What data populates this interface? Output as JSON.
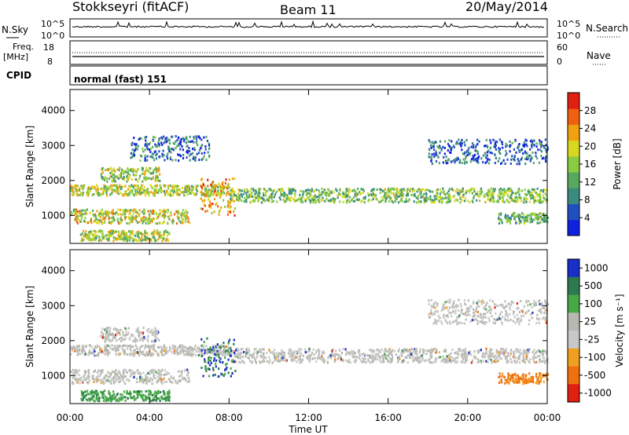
{
  "header": {
    "station": "Stokkseyri (fitACF)",
    "beam": "Beam 11",
    "date": "20/May/2014"
  },
  "panels": {
    "nsky_label": "N.Sky",
    "nsky_ticks": [
      "10^5",
      "10^0"
    ],
    "nsearch_label": "N.Search",
    "nsearch_ticks": [
      "10^5",
      "10^0"
    ],
    "freq_label": "Freq.",
    "freq_unit": "[MHz]",
    "freq_ticks": [
      "18",
      "8"
    ],
    "nave_label": "Nave",
    "nave_ticks": [
      "60",
      "0"
    ],
    "cpid_label": "CPID",
    "cpid_text": "normal (fast) 151"
  },
  "chart_data": [
    {
      "type": "heatmap",
      "name": "power",
      "ylabel": "Slant Range [km]",
      "yticks": [
        1000,
        2000,
        3000,
        4000
      ],
      "ylim": [
        200,
        4600
      ],
      "xlim": [
        "00:00",
        "24:00"
      ],
      "colorbar": {
        "label": "Power [dB]",
        "ticks": [
          "4",
          "8",
          "12",
          "16",
          "20",
          "24",
          "28"
        ],
        "colors": [
          "#1020e0",
          "#2050c0",
          "#3a8a80",
          "#58a860",
          "#8acc40",
          "#d8d820",
          "#f0a010",
          "#f06010",
          "#e02010"
        ]
      },
      "bands": [
        {
          "t0": 0.0,
          "t1": 8.0,
          "r0": 1600,
          "r1": 1900,
          "level": 0.55
        },
        {
          "t0": 8.0,
          "t1": 24.0,
          "r0": 1400,
          "r1": 1800,
          "level": 0.45
        },
        {
          "t0": 0.0,
          "t1": 6.0,
          "r0": 800,
          "r1": 1200,
          "level": 0.6
        },
        {
          "t0": 1.5,
          "t1": 4.5,
          "r0": 2000,
          "r1": 2400,
          "level": 0.5
        },
        {
          "t0": 0.5,
          "t1": 5.0,
          "r0": 300,
          "r1": 600,
          "level": 0.55
        },
        {
          "t0": 6.5,
          "t1": 8.3,
          "r0": 1000,
          "r1": 2100,
          "level": 0.75
        },
        {
          "t0": 21.5,
          "t1": 24.0,
          "r0": 800,
          "r1": 1100,
          "level": 0.4
        },
        {
          "t0": 18.0,
          "t1": 24.0,
          "r0": 2500,
          "r1": 3200,
          "level": 0.15
        },
        {
          "t0": 3.0,
          "t1": 7.0,
          "r0": 2600,
          "r1": 3300,
          "level": 0.2
        }
      ]
    },
    {
      "type": "heatmap",
      "name": "velocity",
      "ylabel": "Slant Range [km]",
      "yticks": [
        1000,
        2000,
        3000,
        4000
      ],
      "ylim": [
        200,
        4600
      ],
      "xlabel": "Time UT",
      "xticks": [
        "00:00",
        "04:00",
        "08:00",
        "12:00",
        "16:00",
        "20:00",
        "00:00"
      ],
      "xlim": [
        "00:00",
        "24:00"
      ],
      "colorbar": {
        "label": "Velocity [m s⁻¹]",
        "ticks": [
          "1000",
          "500",
          "100",
          "25",
          "-25",
          "-100",
          "-500",
          "-1000"
        ],
        "colors": [
          "#1a2ec8",
          "#2e7a50",
          "#48a848",
          "#b8b8b0",
          "#c8c8c8",
          "#f0a020",
          "#f07010",
          "#e02010"
        ]
      },
      "bands": [
        {
          "t0": 0.0,
          "t1": 8.0,
          "r0": 1600,
          "r1": 1900,
          "cls": "gray"
        },
        {
          "t0": 8.0,
          "t1": 24.0,
          "r0": 1400,
          "r1": 1800,
          "cls": "gray"
        },
        {
          "t0": 0.0,
          "t1": 6.0,
          "r0": 800,
          "r1": 1200,
          "cls": "gray"
        },
        {
          "t0": 1.5,
          "t1": 4.5,
          "r0": 2000,
          "r1": 2400,
          "cls": "gray"
        },
        {
          "t0": 0.5,
          "t1": 5.0,
          "r0": 300,
          "r1": 600,
          "cls": "green"
        },
        {
          "t0": 6.5,
          "t1": 8.3,
          "r0": 1000,
          "r1": 2100,
          "cls": "mixed"
        },
        {
          "t0": 21.5,
          "t1": 24.0,
          "r0": 800,
          "r1": 1100,
          "cls": "orange"
        },
        {
          "t0": 18.0,
          "t1": 24.0,
          "r0": 2500,
          "r1": 3200,
          "cls": "gray"
        }
      ]
    }
  ]
}
